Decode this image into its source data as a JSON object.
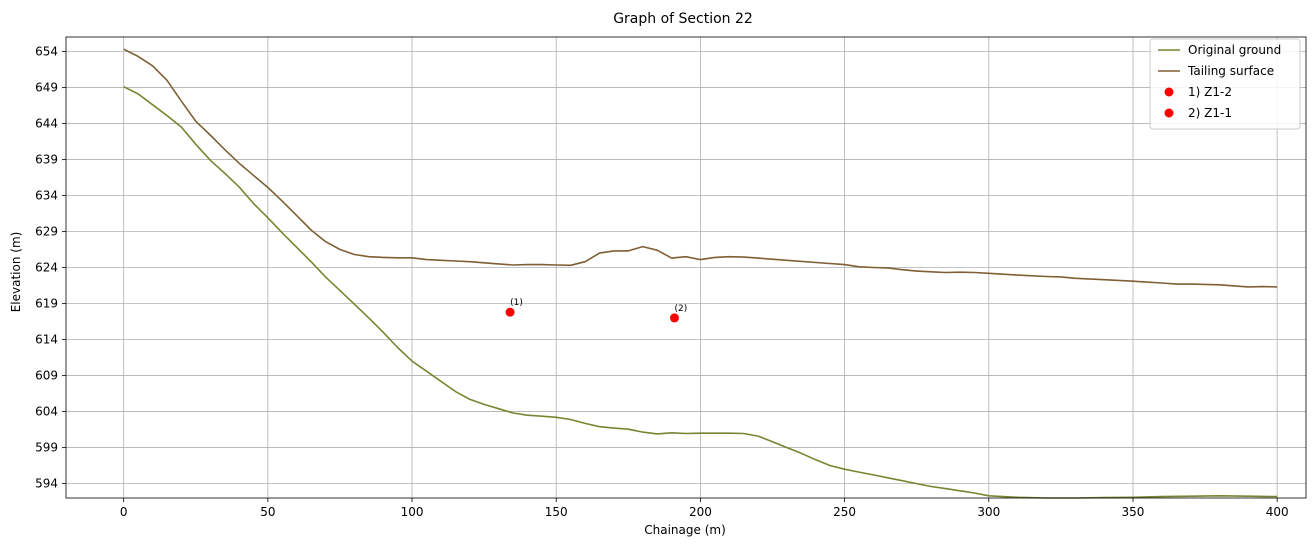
{
  "chart_data": {
    "type": "line",
    "title": "Graph of Section 22",
    "xlabel": "Chainage (m)",
    "ylabel": "Elevation (m)",
    "xlim": [
      -20,
      410
    ],
    "ylim": [
      592,
      656
    ],
    "xticks": [
      0,
      50,
      100,
      150,
      200,
      250,
      300,
      350,
      400
    ],
    "yticks": [
      594,
      599,
      604,
      609,
      614,
      619,
      624,
      629,
      634,
      639,
      644,
      649,
      654
    ],
    "grid": true,
    "legend_position": "top-right",
    "series": [
      {
        "name": "Original ground",
        "color": "#7a8430",
        "x": [
          0,
          5,
          10,
          15,
          20,
          25,
          30,
          35,
          40,
          45,
          50,
          55,
          60,
          65,
          70,
          75,
          80,
          85,
          90,
          95,
          100,
          105,
          110,
          115,
          120,
          125,
          130,
          135,
          140,
          145,
          150,
          155,
          160,
          165,
          170,
          175,
          180,
          185,
          190,
          195,
          200,
          205,
          210,
          215,
          220,
          225,
          230,
          235,
          240,
          245,
          250,
          255,
          260,
          265,
          270,
          275,
          280,
          285,
          290,
          295,
          300,
          310,
          320,
          330,
          340,
          350,
          360,
          370,
          380,
          390,
          400
        ],
        "y": [
          649.1,
          648.1,
          646.6,
          645.1,
          643.5,
          641.1,
          638.9,
          637.1,
          635.2,
          632.9,
          630.9,
          628.8,
          626.8,
          624.8,
          622.7,
          620.8,
          618.9,
          617.0,
          615.0,
          612.9,
          611.0,
          609.6,
          608.2,
          606.8,
          605.7,
          605.0,
          604.4,
          603.8,
          603.5,
          603.35,
          603.2,
          602.9,
          602.35,
          601.9,
          601.7,
          601.55,
          601.15,
          600.9,
          601.05,
          600.95,
          601.0,
          601.0,
          601.0,
          600.95,
          600.6,
          599.8,
          599.0,
          598.2,
          597.3,
          596.5,
          596.0,
          595.6,
          595.2,
          594.8,
          594.4,
          594.0,
          593.6,
          593.3,
          593.0,
          592.7,
          592.3,
          592.1,
          592.0,
          592.0,
          592.05,
          592.1,
          592.2,
          592.25,
          592.3,
          592.25,
          592.2
        ]
      },
      {
        "name": "Tailing surface",
        "color": "#7f5f34",
        "x": [
          0,
          5,
          10,
          15,
          20,
          25,
          30,
          35,
          40,
          45,
          50,
          55,
          60,
          65,
          70,
          75,
          80,
          85,
          90,
          95,
          100,
          105,
          110,
          115,
          120,
          125,
          130,
          135,
          140,
          145,
          150,
          155,
          160,
          165,
          170,
          175,
          180,
          185,
          190,
          195,
          200,
          205,
          210,
          215,
          220,
          230,
          240,
          250,
          255,
          260,
          265,
          270,
          275,
          280,
          285,
          290,
          295,
          300,
          310,
          320,
          325,
          330,
          340,
          350,
          360,
          365,
          370,
          380,
          390,
          395,
          400
        ],
        "y": [
          654.3,
          653.3,
          652.0,
          650.0,
          647.1,
          644.3,
          642.4,
          640.4,
          638.5,
          636.8,
          635.1,
          633.2,
          631.2,
          629.2,
          627.6,
          626.5,
          625.8,
          625.5,
          625.4,
          625.35,
          625.35,
          625.1,
          625.0,
          624.9,
          624.8,
          624.65,
          624.5,
          624.35,
          624.4,
          624.4,
          624.35,
          624.3,
          624.8,
          626.0,
          626.3,
          626.3,
          626.9,
          626.4,
          625.3,
          625.5,
          625.1,
          625.4,
          625.5,
          625.45,
          625.3,
          625.0,
          624.7,
          624.4,
          624.1,
          624.0,
          623.95,
          623.7,
          623.5,
          623.4,
          623.3,
          623.35,
          623.3,
          623.2,
          622.95,
          622.75,
          622.7,
          622.5,
          622.3,
          622.1,
          621.85,
          621.7,
          621.7,
          621.6,
          621.3,
          621.35,
          621.3
        ]
      }
    ],
    "points": [
      {
        "name": "1) Z1-2",
        "label": "(1)",
        "x": 134,
        "y": 617.8,
        "color": "#ff0000"
      },
      {
        "name": "2) Z1-1",
        "label": "(2)",
        "x": 191,
        "y": 617.0,
        "color": "#ff0000"
      }
    ]
  }
}
